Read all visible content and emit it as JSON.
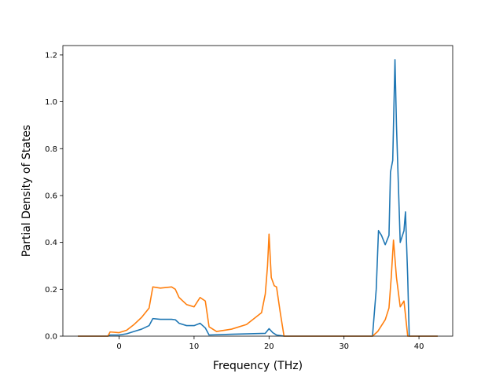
{
  "chart_data": {
    "type": "line",
    "title": "",
    "xlabel": "Frequency (THz)",
    "ylabel": "Partial Density of States",
    "xlim": [
      -7.5,
      44.5
    ],
    "ylim": [
      0,
      1.24
    ],
    "xticks": [
      0,
      10,
      20,
      30,
      40
    ],
    "yticks": [
      0.0,
      0.2,
      0.4,
      0.6,
      0.8,
      1.0,
      1.2
    ],
    "xtick_labels": [
      "0",
      "10",
      "20",
      "30",
      "40"
    ],
    "ytick_labels": [
      "0.0",
      "0.2",
      "0.4",
      "0.6",
      "0.8",
      "1.0",
      "1.2"
    ],
    "grid": false,
    "legend": "none",
    "series": [
      {
        "color": "#1f77b4",
        "points": [
          [
            -5.5,
            0.0
          ],
          [
            -1.5,
            0.0
          ],
          [
            -1.2,
            0.005
          ],
          [
            0.0,
            0.005
          ],
          [
            1.0,
            0.01
          ],
          [
            2.0,
            0.02
          ],
          [
            3.0,
            0.03
          ],
          [
            4.0,
            0.045
          ],
          [
            4.5,
            0.075
          ],
          [
            5.5,
            0.072
          ],
          [
            7.0,
            0.072
          ],
          [
            7.5,
            0.07
          ],
          [
            8.0,
            0.055
          ],
          [
            9.0,
            0.045
          ],
          [
            10.0,
            0.045
          ],
          [
            10.8,
            0.055
          ],
          [
            11.5,
            0.035
          ],
          [
            12.0,
            0.005
          ],
          [
            15.0,
            0.008
          ],
          [
            19.5,
            0.012
          ],
          [
            20.0,
            0.032
          ],
          [
            20.5,
            0.015
          ],
          [
            21.0,
            0.005
          ],
          [
            22.0,
            0.0
          ],
          [
            33.8,
            0.0
          ],
          [
            34.3,
            0.2
          ],
          [
            34.6,
            0.45
          ],
          [
            35.0,
            0.43
          ],
          [
            35.5,
            0.39
          ],
          [
            36.0,
            0.43
          ],
          [
            36.2,
            0.7
          ],
          [
            36.5,
            0.75
          ],
          [
            36.8,
            1.18
          ],
          [
            37.0,
            0.9
          ],
          [
            37.5,
            0.4
          ],
          [
            38.0,
            0.45
          ],
          [
            38.2,
            0.53
          ],
          [
            38.5,
            0.25
          ],
          [
            38.7,
            0.0
          ],
          [
            42.5,
            0.0
          ]
        ]
      },
      {
        "color": "#ff7f0e",
        "points": [
          [
            -5.5,
            0.0
          ],
          [
            -1.5,
            0.0
          ],
          [
            -1.2,
            0.018
          ],
          [
            0.0,
            0.015
          ],
          [
            1.0,
            0.025
          ],
          [
            2.0,
            0.05
          ],
          [
            3.0,
            0.08
          ],
          [
            4.0,
            0.12
          ],
          [
            4.5,
            0.21
          ],
          [
            5.5,
            0.205
          ],
          [
            7.0,
            0.21
          ],
          [
            7.5,
            0.2
          ],
          [
            8.0,
            0.165
          ],
          [
            9.0,
            0.135
          ],
          [
            10.0,
            0.125
          ],
          [
            10.8,
            0.165
          ],
          [
            11.5,
            0.15
          ],
          [
            12.0,
            0.04
          ],
          [
            13.0,
            0.02
          ],
          [
            15.0,
            0.03
          ],
          [
            17.0,
            0.05
          ],
          [
            19.0,
            0.1
          ],
          [
            19.5,
            0.18
          ],
          [
            19.8,
            0.3
          ],
          [
            20.0,
            0.435
          ],
          [
            20.3,
            0.25
          ],
          [
            20.7,
            0.215
          ],
          [
            21.0,
            0.21
          ],
          [
            21.5,
            0.1
          ],
          [
            22.0,
            0.0
          ],
          [
            33.8,
            0.0
          ],
          [
            34.5,
            0.02
          ],
          [
            35.5,
            0.07
          ],
          [
            36.0,
            0.12
          ],
          [
            36.3,
            0.25
          ],
          [
            36.6,
            0.41
          ],
          [
            37.0,
            0.25
          ],
          [
            37.5,
            0.125
          ],
          [
            38.0,
            0.15
          ],
          [
            38.5,
            0.0
          ],
          [
            42.5,
            0.0
          ]
        ]
      }
    ]
  }
}
